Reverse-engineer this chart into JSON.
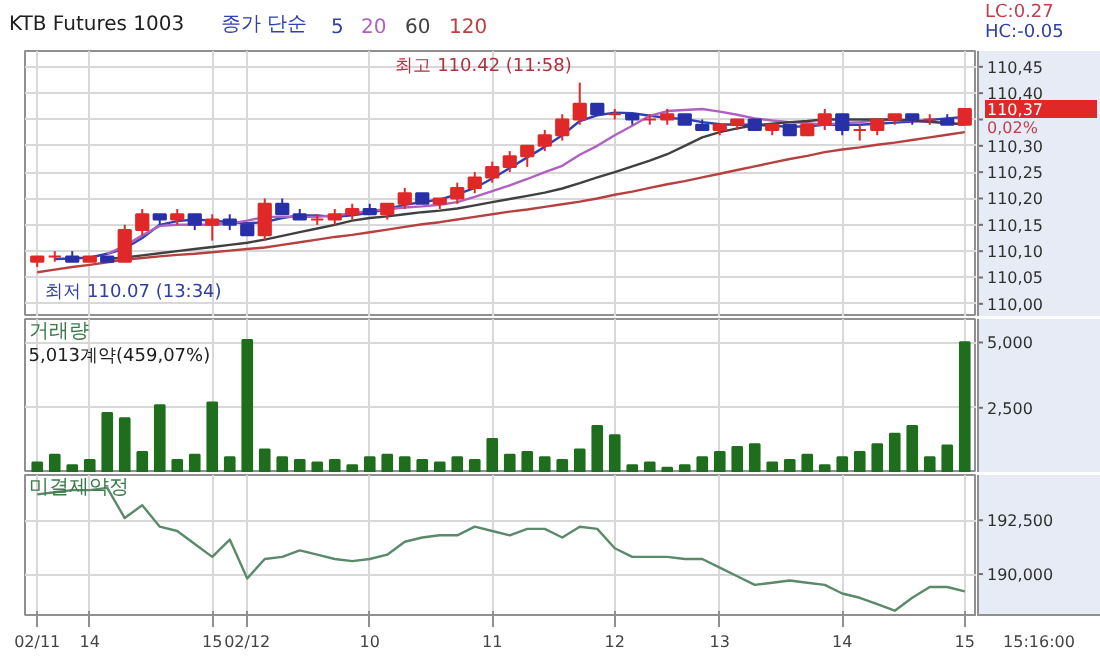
{
  "chart_data": [
    {
      "type": "candlestick",
      "title": "KTB Futures 1003",
      "legend_title": "종가 단순",
      "categories": [
        "02/11",
        null,
        null,
        "14",
        null,
        null,
        null,
        null,
        null,
        null,
        "15",
        null,
        "02/12",
        null,
        null,
        null,
        null,
        null,
        null,
        "10",
        null,
        null,
        null,
        null,
        null,
        null,
        "11",
        null,
        null,
        null,
        null,
        null,
        null,
        "12",
        null,
        null,
        null,
        null,
        null,
        "13",
        null,
        null,
        null,
        null,
        null,
        null,
        "14",
        null,
        null,
        null,
        null,
        null,
        null,
        "15"
      ],
      "ohlc": [
        [
          110.08,
          110.09,
          110.07,
          110.09
        ],
        [
          110.09,
          110.1,
          110.08,
          110.09
        ],
        [
          110.09,
          110.1,
          110.08,
          110.08
        ],
        [
          110.08,
          110.09,
          110.08,
          110.09
        ],
        [
          110.09,
          110.09,
          110.08,
          110.08
        ],
        [
          110.08,
          110.15,
          110.08,
          110.14
        ],
        [
          110.14,
          110.18,
          110.13,
          110.17
        ],
        [
          110.17,
          110.17,
          110.15,
          110.16
        ],
        [
          110.16,
          110.18,
          110.15,
          110.17
        ],
        [
          110.17,
          110.17,
          110.14,
          110.15
        ],
        [
          110.15,
          110.17,
          110.12,
          110.16
        ],
        [
          110.16,
          110.17,
          110.14,
          110.15
        ],
        [
          110.15,
          110.15,
          110.13,
          110.13
        ],
        [
          110.13,
          110.2,
          110.12,
          110.19
        ],
        [
          110.19,
          110.2,
          110.17,
          110.17
        ],
        [
          110.17,
          110.18,
          110.16,
          110.16
        ],
        [
          110.16,
          110.17,
          110.15,
          110.16
        ],
        [
          110.16,
          110.18,
          110.15,
          110.17
        ],
        [
          110.17,
          110.19,
          110.16,
          110.18
        ],
        [
          110.18,
          110.19,
          110.17,
          110.17
        ],
        [
          110.17,
          110.19,
          110.16,
          110.19
        ],
        [
          110.19,
          110.22,
          110.18,
          110.21
        ],
        [
          110.21,
          110.21,
          110.19,
          110.19
        ],
        [
          110.19,
          110.2,
          110.18,
          110.2
        ],
        [
          110.2,
          110.23,
          110.19,
          110.22
        ],
        [
          110.22,
          110.25,
          110.21,
          110.24
        ],
        [
          110.24,
          110.27,
          110.23,
          110.26
        ],
        [
          110.26,
          110.29,
          110.25,
          110.28
        ],
        [
          110.28,
          110.3,
          110.26,
          110.3
        ],
        [
          110.3,
          110.33,
          110.29,
          110.32
        ],
        [
          110.32,
          110.36,
          110.31,
          110.35
        ],
        [
          110.35,
          110.42,
          110.34,
          110.38
        ],
        [
          110.38,
          110.38,
          110.36,
          110.36
        ],
        [
          110.36,
          110.37,
          110.35,
          110.36
        ],
        [
          110.36,
          110.36,
          110.34,
          110.35
        ],
        [
          110.35,
          110.36,
          110.34,
          110.35
        ],
        [
          110.35,
          110.37,
          110.34,
          110.36
        ],
        [
          110.36,
          110.36,
          110.34,
          110.34
        ],
        [
          110.34,
          110.35,
          110.33,
          110.33
        ],
        [
          110.33,
          110.34,
          110.32,
          110.34
        ],
        [
          110.34,
          110.35,
          110.33,
          110.35
        ],
        [
          110.35,
          110.35,
          110.33,
          110.33
        ],
        [
          110.33,
          110.34,
          110.32,
          110.34
        ],
        [
          110.34,
          110.34,
          110.32,
          110.32
        ],
        [
          110.32,
          110.34,
          110.32,
          110.34
        ],
        [
          110.34,
          110.37,
          110.33,
          110.36
        ],
        [
          110.36,
          110.36,
          110.32,
          110.33
        ],
        [
          110.33,
          110.34,
          110.31,
          110.33
        ],
        [
          110.33,
          110.35,
          110.32,
          110.35
        ],
        [
          110.35,
          110.36,
          110.34,
          110.36
        ],
        [
          110.36,
          110.36,
          110.34,
          110.35
        ],
        [
          110.35,
          110.36,
          110.34,
          110.35
        ],
        [
          110.35,
          110.36,
          110.34,
          110.34
        ],
        [
          110.34,
          110.37,
          110.34,
          110.37
        ]
      ],
      "colors": [
        "#e02828",
        "#e02828",
        "#2830a8",
        "#e02828",
        "#2830a8",
        "#e02828",
        "#e02828",
        "#2830a8",
        "#e02828",
        "#2830a8",
        "#e02828",
        "#2830a8",
        "#2830a8",
        "#e02828",
        "#2830a8",
        "#2830a8",
        "#e02828",
        "#e02828",
        "#e02828",
        "#2830a8",
        "#e02828",
        "#e02828",
        "#2830a8",
        "#e02828",
        "#e02828",
        "#e02828",
        "#e02828",
        "#e02828",
        "#e02828",
        "#e02828",
        "#e02828",
        "#e02828",
        "#2830a8",
        "#e02828",
        "#2830a8",
        "#e02828",
        "#e02828",
        "#2830a8",
        "#2830a8",
        "#e02828",
        "#e02828",
        "#2830a8",
        "#e02828",
        "#2830a8",
        "#e02828",
        "#e02828",
        "#2830a8",
        "#e02828",
        "#e02828",
        "#e02828",
        "#2830a8",
        "#e02828",
        "#2830a8",
        "#e02828"
      ],
      "series": [
        {
          "type": "line",
          "name": "5",
          "color": "#3040b0",
          "values": [
            null,
            110.085,
            110.086,
            110.088,
            110.095,
            110.105,
            110.125,
            110.15,
            110.157,
            110.16,
            110.158,
            110.155,
            110.153,
            110.155,
            110.163,
            110.168,
            110.168,
            110.165,
            110.168,
            110.173,
            110.18,
            110.188,
            110.193,
            110.198,
            110.208,
            110.22,
            110.238,
            110.258,
            110.278,
            110.298,
            110.32,
            110.347,
            110.358,
            110.363,
            110.362,
            110.357,
            110.353,
            110.351,
            110.345,
            110.341,
            110.34,
            110.34,
            110.338,
            110.336,
            110.337,
            110.34,
            110.34,
            110.34,
            110.342,
            110.344,
            110.346,
            110.349,
            110.352,
            110.355
          ]
        },
        {
          "type": "line",
          "name": "20",
          "color": "#b060c0",
          "values": [
            null,
            null,
            null,
            null,
            110.095,
            110.11,
            110.13,
            110.148,
            110.15,
            110.15,
            110.15,
            110.152,
            110.158,
            110.165,
            110.165,
            110.165,
            110.165,
            110.168,
            110.172,
            110.176,
            110.18,
            110.183,
            110.185,
            110.188,
            110.193,
            110.203,
            110.214,
            110.225,
            110.237,
            110.25,
            110.262,
            110.283,
            110.3,
            110.32,
            110.338,
            110.357,
            110.366,
            110.368,
            110.37,
            110.365,
            110.359,
            110.352,
            110.348,
            110.345,
            110.343,
            110.34,
            110.343,
            110.345,
            110.348,
            110.35,
            110.347,
            110.345,
            110.343,
            110.34
          ]
        },
        {
          "type": "line",
          "name": "60",
          "color": "#404040",
          "values": [
            null,
            null,
            null,
            null,
            110.085,
            110.088,
            110.092,
            110.096,
            110.1,
            110.104,
            110.108,
            110.112,
            110.116,
            110.122,
            110.129,
            110.136,
            110.143,
            110.15,
            110.158,
            110.163,
            110.166,
            110.17,
            110.174,
            110.177,
            110.181,
            110.187,
            110.193,
            110.199,
            110.205,
            110.211,
            110.219,
            110.229,
            110.24,
            110.25,
            110.261,
            110.272,
            110.284,
            110.3,
            110.316,
            110.326,
            110.333,
            110.339,
            110.342,
            110.345,
            110.347,
            110.35,
            110.35,
            110.35,
            110.35,
            110.35,
            110.348,
            110.346,
            110.343,
            110.341
          ]
        },
        {
          "type": "line",
          "name": "120",
          "color": "#b84040",
          "values": [
            110.06,
            110.065,
            110.07,
            110.074,
            110.079,
            110.084,
            110.087,
            110.09,
            110.093,
            110.095,
            110.098,
            110.101,
            110.104,
            110.107,
            110.112,
            110.117,
            110.122,
            110.127,
            110.131,
            110.136,
            110.141,
            110.146,
            110.151,
            110.155,
            110.16,
            110.165,
            110.17,
            110.175,
            110.179,
            110.184,
            110.189,
            110.194,
            110.2,
            110.207,
            110.213,
            110.22,
            110.227,
            110.233,
            110.24,
            110.247,
            110.254,
            110.261,
            110.268,
            110.275,
            110.281,
            110.288,
            110.293,
            110.297,
            110.302,
            110.306,
            110.311,
            110.316,
            110.321,
            110.326
          ]
        }
      ],
      "ylim": [
        109.975,
        110.48
      ],
      "yticks": [
        {
          "value": 110.0,
          "label": "110,00"
        },
        {
          "value": 110.05,
          "label": "110,05"
        },
        {
          "value": 110.1,
          "label": "110,10"
        },
        {
          "value": 110.15,
          "label": "110,15"
        },
        {
          "value": 110.2,
          "label": "110,20"
        },
        {
          "value": 110.25,
          "label": "110,25"
        },
        {
          "value": 110.3,
          "label": "110,30"
        },
        {
          "value": 110.35,
          "label": null
        },
        {
          "value": 110.4,
          "label": "110,40"
        },
        {
          "value": 110.45,
          "label": "110,45"
        }
      ],
      "annotations": [
        "최고 110.42 (11:58)",
        "최저 110.07 (13:34)",
        "110,37",
        "LC:0.27",
        "HC:-0.05",
        "0,02%"
      ],
      "grid": true,
      "tick_labels": "y"
    },
    {
      "type": "bar",
      "title": "거래량",
      "color": "#1e6e1e",
      "categories": [
        "02/11",
        null,
        null,
        "14",
        null,
        null,
        null,
        null,
        null,
        null,
        "15",
        null,
        "02/12",
        null,
        null,
        null,
        null,
        null,
        null,
        "10",
        null,
        null,
        null,
        null,
        null,
        null,
        "11",
        null,
        null,
        null,
        null,
        null,
        null,
        "12",
        null,
        null,
        null,
        null,
        null,
        "13",
        null,
        null,
        null,
        null,
        null,
        null,
        "14",
        null,
        null,
        null,
        null,
        null,
        null,
        "15"
      ],
      "values": [
        400,
        700,
        300,
        500,
        2300,
        2100,
        800,
        2600,
        500,
        700,
        2700,
        600,
        5100,
        900,
        600,
        500,
        400,
        500,
        300,
        600,
        700,
        600,
        500,
        400,
        600,
        500,
        1300,
        700,
        800,
        600,
        500,
        900,
        1800,
        1450,
        300,
        400,
        200,
        300,
        600,
        800,
        1000,
        1100,
        400,
        500,
        700,
        300,
        600,
        800,
        1100,
        1500,
        1800,
        600,
        1050,
        5013
      ],
      "ylim": [
        0,
        5900
      ],
      "yticks": [
        {
          "value": 2500,
          "label": "2,500"
        },
        {
          "value": 5000,
          "label": "5,000"
        }
      ],
      "annotations": [
        "5,013계약(459,07%)"
      ],
      "grid": true,
      "tick_labels": "y"
    },
    {
      "type": "line",
      "title": "미결제약정",
      "color": "#5a8a6a",
      "categories": [
        "02/11",
        null,
        null,
        "14",
        null,
        null,
        null,
        null,
        null,
        null,
        "15",
        null,
        "02/12",
        null,
        null,
        null,
        null,
        null,
        null,
        "10",
        null,
        null,
        null,
        null,
        null,
        null,
        "11",
        null,
        null,
        null,
        null,
        null,
        null,
        "12",
        null,
        null,
        null,
        null,
        null,
        "13",
        null,
        null,
        null,
        null,
        null,
        null,
        "14",
        null,
        null,
        null,
        null,
        null,
        null,
        "15"
      ],
      "values": [
        193700,
        193800,
        193900,
        193900,
        194000,
        192600,
        193200,
        192200,
        192000,
        191400,
        190800,
        191600,
        189800,
        190700,
        190800,
        191100,
        190900,
        190700,
        190600,
        190700,
        190900,
        191500,
        191700,
        191800,
        191800,
        192200,
        192000,
        191800,
        192100,
        192100,
        191700,
        192200,
        192100,
        191200,
        190800,
        190800,
        190800,
        190700,
        190700,
        190300,
        189900,
        189500,
        189600,
        189700,
        189600,
        189500,
        189100,
        188900,
        188600,
        188300,
        188900,
        189400,
        189400,
        189200
      ],
      "ylim": [
        188100,
        194600
      ],
      "yticks": [
        {
          "value": 190000,
          "label": "190,000"
        },
        {
          "value": 192500,
          "label": "192,500"
        }
      ],
      "annotations": [
        "15:16:00"
      ],
      "grid": true
    }
  ]
}
